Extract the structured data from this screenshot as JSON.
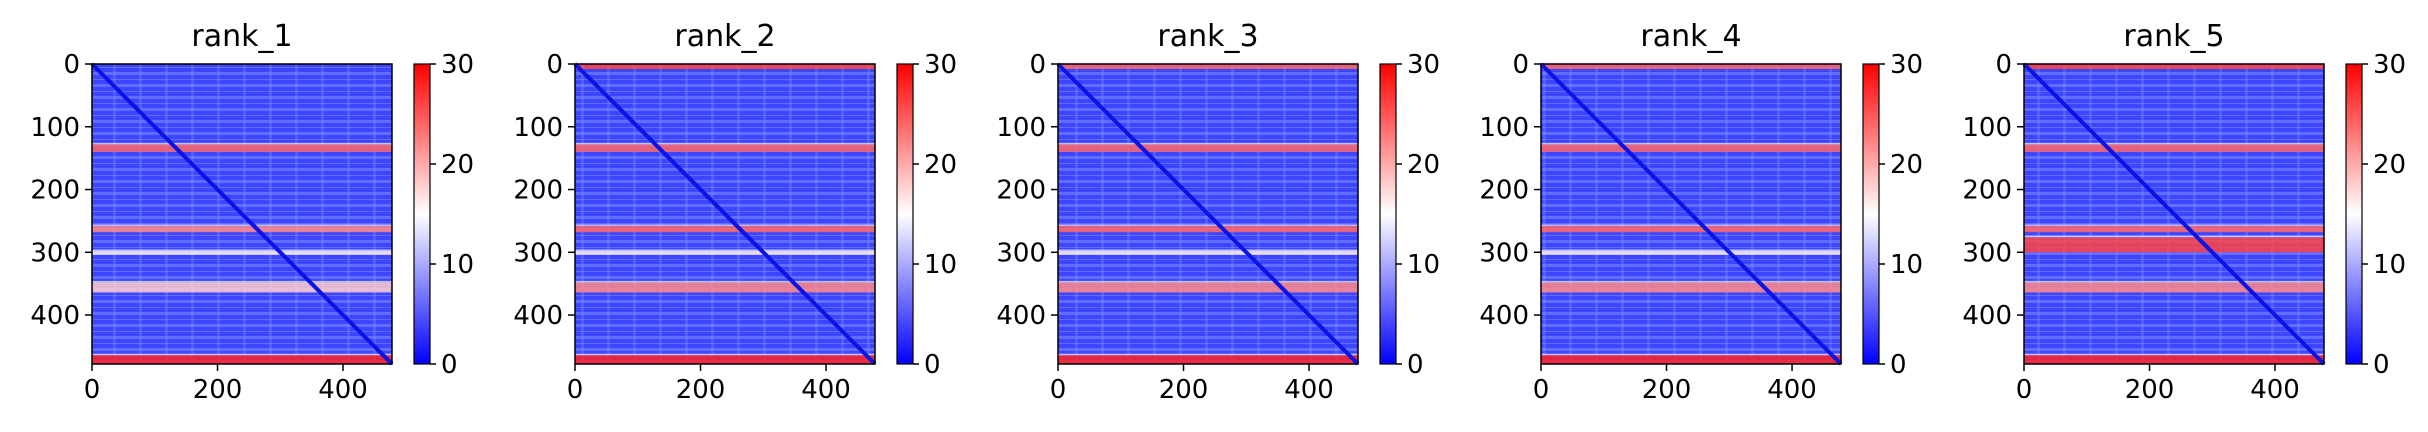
{
  "chart_data": [
    {
      "type": "heatmap",
      "title": "rank_1",
      "xlim": [
        0,
        478
      ],
      "ylim": [
        478,
        0
      ],
      "x_ticks": [
        0,
        200,
        400
      ],
      "y_ticks": [
        0,
        100,
        200,
        300,
        400
      ],
      "colorbar": {
        "range": [
          0,
          30
        ],
        "ticks": [
          0,
          10,
          20,
          30
        ],
        "colormap": "bwr"
      },
      "high_error_rows": [
        {
          "start": 128,
          "end": 140,
          "value": 24
        },
        {
          "start": 258,
          "end": 268,
          "value": 22
        },
        {
          "start": 298,
          "end": 304,
          "value": 16
        },
        {
          "start": 348,
          "end": 364,
          "value": 18
        },
        {
          "start": 464,
          "end": 478,
          "value": 28
        }
      ]
    },
    {
      "type": "heatmap",
      "title": "rank_2",
      "xlim": [
        0,
        478
      ],
      "ylim": [
        478,
        0
      ],
      "x_ticks": [
        0,
        200,
        400
      ],
      "y_ticks": [
        0,
        100,
        200,
        300,
        400
      ],
      "colorbar": {
        "range": [
          0,
          30
        ],
        "ticks": [
          0,
          10,
          20,
          30
        ],
        "colormap": "bwr"
      },
      "high_error_rows": [
        {
          "start": 0,
          "end": 8,
          "value": 26
        },
        {
          "start": 128,
          "end": 140,
          "value": 24
        },
        {
          "start": 258,
          "end": 268,
          "value": 24
        },
        {
          "start": 298,
          "end": 304,
          "value": 16
        },
        {
          "start": 348,
          "end": 364,
          "value": 22
        },
        {
          "start": 464,
          "end": 478,
          "value": 28
        }
      ]
    },
    {
      "type": "heatmap",
      "title": "rank_3",
      "xlim": [
        0,
        478
      ],
      "ylim": [
        478,
        0
      ],
      "x_ticks": [
        0,
        200,
        400
      ],
      "y_ticks": [
        0,
        100,
        200,
        300,
        400
      ],
      "colorbar": {
        "range": [
          0,
          30
        ],
        "ticks": [
          0,
          10,
          20,
          30
        ],
        "colormap": "bwr"
      },
      "high_error_rows": [
        {
          "start": 0,
          "end": 8,
          "value": 24
        },
        {
          "start": 128,
          "end": 140,
          "value": 24
        },
        {
          "start": 258,
          "end": 268,
          "value": 24
        },
        {
          "start": 298,
          "end": 304,
          "value": 16
        },
        {
          "start": 348,
          "end": 364,
          "value": 22
        },
        {
          "start": 464,
          "end": 478,
          "value": 28
        }
      ]
    },
    {
      "type": "heatmap",
      "title": "rank_4",
      "xlim": [
        0,
        478
      ],
      "ylim": [
        478,
        0
      ],
      "x_ticks": [
        0,
        200,
        400
      ],
      "y_ticks": [
        0,
        100,
        200,
        300,
        400
      ],
      "colorbar": {
        "range": [
          0,
          30
        ],
        "ticks": [
          0,
          10,
          20,
          30
        ],
        "colormap": "bwr"
      },
      "high_error_rows": [
        {
          "start": 0,
          "end": 8,
          "value": 24
        },
        {
          "start": 128,
          "end": 140,
          "value": 24
        },
        {
          "start": 258,
          "end": 268,
          "value": 24
        },
        {
          "start": 298,
          "end": 304,
          "value": 16
        },
        {
          "start": 348,
          "end": 364,
          "value": 22
        },
        {
          "start": 464,
          "end": 478,
          "value": 28
        }
      ]
    },
    {
      "type": "heatmap",
      "title": "rank_5",
      "xlim": [
        0,
        478
      ],
      "ylim": [
        478,
        0
      ],
      "x_ticks": [
        0,
        200,
        400
      ],
      "y_ticks": [
        0,
        100,
        200,
        300,
        400
      ],
      "colorbar": {
        "range": [
          0,
          30
        ],
        "ticks": [
          0,
          10,
          20,
          30
        ],
        "colormap": "bwr"
      },
      "high_error_rows": [
        {
          "start": 0,
          "end": 8,
          "value": 26
        },
        {
          "start": 128,
          "end": 140,
          "value": 24
        },
        {
          "start": 258,
          "end": 268,
          "value": 24
        },
        {
          "start": 276,
          "end": 300,
          "value": 26
        },
        {
          "start": 348,
          "end": 364,
          "value": 22
        },
        {
          "start": 464,
          "end": 478,
          "value": 28
        }
      ]
    }
  ]
}
